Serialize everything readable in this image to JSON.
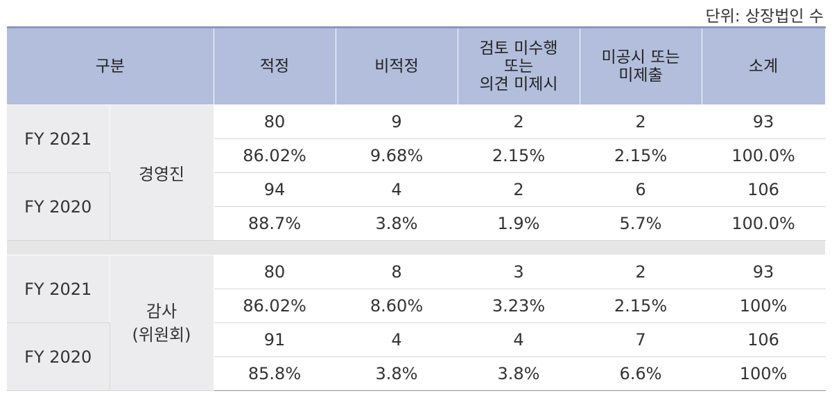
{
  "unit_label": "단위: 상장법인 수",
  "headers": [
    "구분",
    "적정",
    "비적정",
    "검토 미수행\n또는\n의견 미제시",
    "미공시 또는\n미제출",
    "소계"
  ],
  "sections": [
    {
      "group": "경영진",
      "years": [
        {
          "fy": "FY 2021",
          "counts": [
            "80",
            "9",
            "2",
            "2",
            "93"
          ],
          "percents": [
            "86.02%",
            "9.68%",
            "2.15%",
            "2.15%",
            "100.0%"
          ]
        },
        {
          "fy": "FY 2020",
          "counts": [
            "94",
            "4",
            "2",
            "6",
            "106"
          ],
          "percents": [
            "88.7%",
            "3.8%",
            "1.9%",
            "5.7%",
            "100.0%"
          ]
        }
      ]
    },
    {
      "group": "감사\n(위원회)",
      "years": [
        {
          "fy": "FY 2021",
          "counts": [
            "80",
            "8",
            "3",
            "2",
            "93"
          ],
          "percents": [
            "86.02%",
            "8.60%",
            "3.23%",
            "2.15%",
            "100%"
          ]
        },
        {
          "fy": "FY 2020",
          "counts": [
            "91",
            "4",
            "4",
            "7",
            "106"
          ],
          "percents": [
            "85.8%",
            "3.8%",
            "3.8%",
            "6.6%",
            "100%"
          ]
        }
      ]
    }
  ]
}
